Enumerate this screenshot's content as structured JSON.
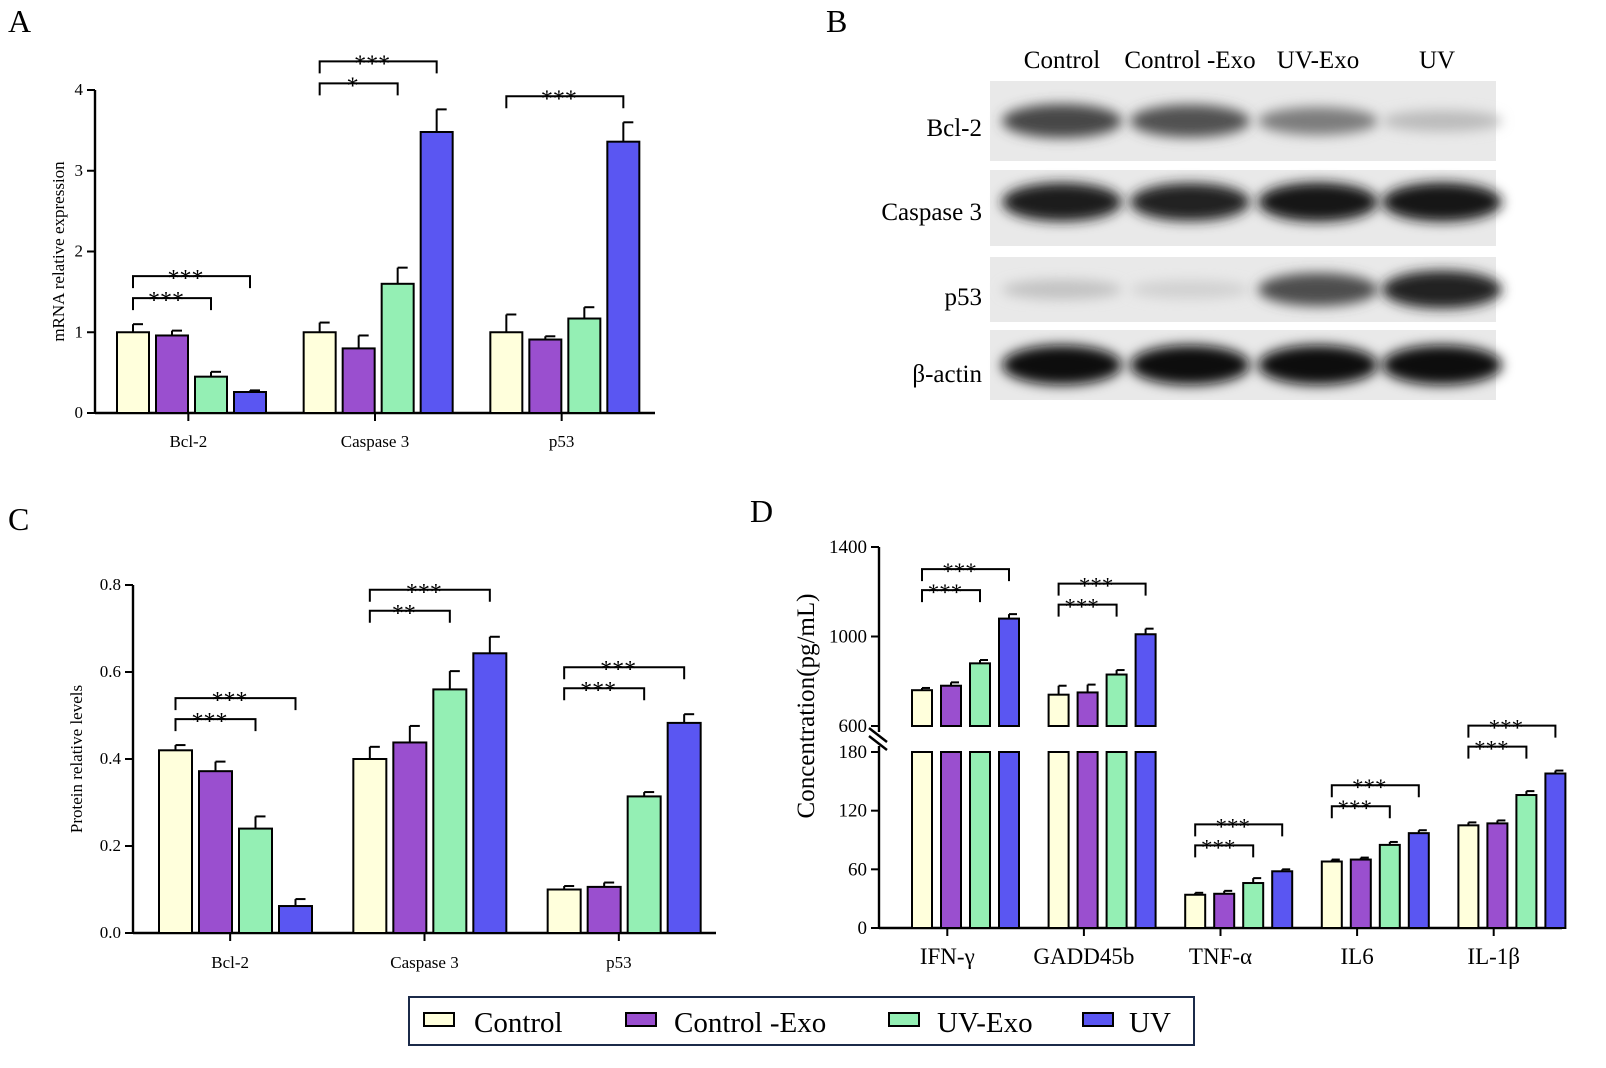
{
  "colors": {
    "control": "#ffffdc",
    "control_exo": "#9a4fcf",
    "uv_exo": "#94efb4",
    "uv": "#5a56f2",
    "axis": "#000000"
  },
  "legend": {
    "items": [
      {
        "label": "Control",
        "color_key": "control"
      },
      {
        "label": "Control -Exo",
        "color_key": "control_exo"
      },
      {
        "label": "UV-Exo",
        "color_key": "uv_exo"
      },
      {
        "label": "UV",
        "color_key": "uv"
      }
    ]
  },
  "western_blot": {
    "panel_label": "B",
    "lanes": [
      "Control",
      "Control -Exo",
      "UV-Exo",
      "UV"
    ],
    "bands": [
      {
        "label": "Bcl-2",
        "intensities": [
          0.75,
          0.7,
          0.5,
          0.22
        ]
      },
      {
        "label": "Caspase 3",
        "intensities": [
          0.95,
          0.92,
          0.97,
          0.97
        ]
      },
      {
        "label": "p53",
        "intensities": [
          0.18,
          0.12,
          0.72,
          0.92
        ]
      },
      {
        "label": "β-actin",
        "intensities": [
          1.0,
          1.0,
          1.0,
          1.0
        ]
      }
    ]
  },
  "chart_data": [
    {
      "panel_label": "A",
      "type": "bar",
      "title": "",
      "xlabel": "",
      "ylabel": "mRNA relative expression",
      "ylim": [
        0,
        4
      ],
      "yticks": [
        "0",
        "1",
        "2",
        "3",
        "4"
      ],
      "categories": [
        "Bcl-2",
        "Caspase 3",
        "p53"
      ],
      "series": [
        {
          "name": "Control",
          "values": [
            1.0,
            1.0,
            1.0
          ],
          "errors": [
            0.1,
            0.12,
            0.22
          ]
        },
        {
          "name": "Control -Exo",
          "values": [
            0.96,
            0.8,
            0.91
          ],
          "errors": [
            0.06,
            0.16,
            0.04
          ]
        },
        {
          "name": "UV-Exo",
          "values": [
            0.45,
            1.6,
            1.17
          ],
          "errors": [
            0.06,
            0.2,
            0.14
          ]
        },
        {
          "name": "UV",
          "values": [
            0.26,
            3.48,
            3.36
          ],
          "errors": [
            0.02,
            0.28,
            0.24
          ]
        }
      ],
      "significance": [
        {
          "category": 0,
          "from": 0,
          "to": 2,
          "label": "***"
        },
        {
          "category": 0,
          "from": 0,
          "to": 3,
          "label": "***"
        },
        {
          "category": 1,
          "from": 0,
          "to": 2,
          "label": "*"
        },
        {
          "category": 1,
          "from": 0,
          "to": 3,
          "label": "***"
        },
        {
          "category": 2,
          "from": 0,
          "to": 3,
          "label": "***"
        }
      ],
      "legend": "bottom (shared)",
      "grid": false
    },
    {
      "panel_label": "C",
      "type": "bar",
      "title": "",
      "xlabel": "",
      "ylabel": "Protein relative levels",
      "ylim": [
        0,
        0.8
      ],
      "yticks": [
        "0.0",
        "0.2",
        "0.4",
        "0.6",
        "0.8"
      ],
      "categories": [
        "Bcl-2",
        "Caspase 3",
        "p53"
      ],
      "series": [
        {
          "name": "Control",
          "values": [
            0.42,
            0.4,
            0.1
          ],
          "errors": [
            0.012,
            0.028,
            0.008
          ]
        },
        {
          "name": "Control -Exo",
          "values": [
            0.372,
            0.438,
            0.106
          ],
          "errors": [
            0.022,
            0.038,
            0.01
          ]
        },
        {
          "name": "UV-Exo",
          "values": [
            0.24,
            0.56,
            0.314
          ],
          "errors": [
            0.028,
            0.042,
            0.01
          ]
        },
        {
          "name": "UV",
          "values": [
            0.062,
            0.643,
            0.483
          ],
          "errors": [
            0.016,
            0.038,
            0.02
          ]
        }
      ],
      "significance": [
        {
          "category": 0,
          "from": 0,
          "to": 2,
          "label": "***"
        },
        {
          "category": 0,
          "from": 0,
          "to": 3,
          "label": "***"
        },
        {
          "category": 1,
          "from": 0,
          "to": 2,
          "label": "**"
        },
        {
          "category": 1,
          "from": 0,
          "to": 3,
          "label": "***"
        },
        {
          "category": 2,
          "from": 0,
          "to": 2,
          "label": "***"
        },
        {
          "category": 2,
          "from": 0,
          "to": 3,
          "label": "***"
        }
      ],
      "legend": "bottom (shared)",
      "grid": false
    },
    {
      "panel_label": "D",
      "type": "bar",
      "title": "",
      "xlabel": "",
      "ylabel": "Concentration(pg/mL)",
      "broken_axis": {
        "lower": [
          0,
          180
        ],
        "upper": [
          600,
          1400
        ]
      },
      "yticks_lower": [
        "0",
        "60",
        "120",
        "180"
      ],
      "yticks_upper": [
        "600",
        "1000",
        "1400"
      ],
      "categories": [
        "IFN-γ",
        "GADD45b",
        "TNF-α",
        "IL6",
        "IL-1β"
      ],
      "series": [
        {
          "name": "Control",
          "values": [
            760,
            740,
            34,
            68,
            105
          ],
          "errors": [
            10,
            40,
            2,
            2,
            3
          ]
        },
        {
          "name": "Control -Exo",
          "values": [
            780,
            750,
            35,
            70,
            107
          ],
          "errors": [
            15,
            35,
            3,
            2,
            3
          ]
        },
        {
          "name": "UV-Exo",
          "values": [
            880,
            830,
            46,
            85,
            136
          ],
          "errors": [
            15,
            20,
            5,
            3,
            4
          ]
        },
        {
          "name": "UV",
          "values": [
            1080,
            1010,
            58,
            97,
            158
          ],
          "errors": [
            20,
            25,
            2,
            3,
            3
          ]
        }
      ],
      "significance": [
        {
          "category": 0,
          "from": 0,
          "to": 2,
          "label": "***"
        },
        {
          "category": 0,
          "from": 0,
          "to": 3,
          "label": "***"
        },
        {
          "category": 1,
          "from": 0,
          "to": 2,
          "label": "***"
        },
        {
          "category": 1,
          "from": 0,
          "to": 3,
          "label": "***"
        },
        {
          "category": 2,
          "from": 0,
          "to": 2,
          "label": "***"
        },
        {
          "category": 2,
          "from": 0,
          "to": 3,
          "label": "***"
        },
        {
          "category": 3,
          "from": 0,
          "to": 2,
          "label": "***"
        },
        {
          "category": 3,
          "from": 0,
          "to": 3,
          "label": "***"
        },
        {
          "category": 4,
          "from": 0,
          "to": 2,
          "label": "***"
        },
        {
          "category": 4,
          "from": 0,
          "to": 3,
          "label": "***"
        }
      ],
      "legend": "bottom (shared)",
      "grid": false
    }
  ]
}
